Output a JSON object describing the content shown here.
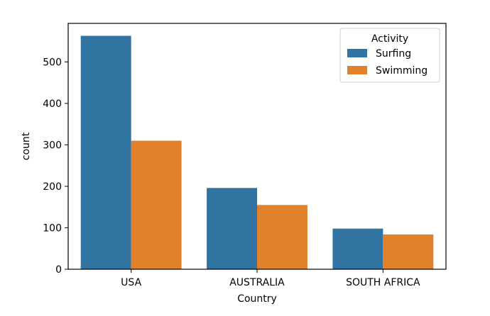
{
  "chart_data": {
    "type": "bar",
    "xlabel": "Country",
    "ylabel": "count",
    "categories": [
      "USA",
      "AUSTRALIA",
      "SOUTH AFRICA"
    ],
    "series": [
      {
        "name": "Surfing",
        "values": [
          563,
          196,
          98
        ],
        "color": "#3274a1"
      },
      {
        "name": "Swimming",
        "values": [
          310,
          155,
          84
        ],
        "color": "#e1812c"
      }
    ],
    "ylim": [
      0,
      593
    ],
    "yticks": [
      0,
      100,
      200,
      300,
      400,
      500
    ],
    "legend": {
      "title": "Activity",
      "placement": "top-right"
    },
    "grid": false
  }
}
